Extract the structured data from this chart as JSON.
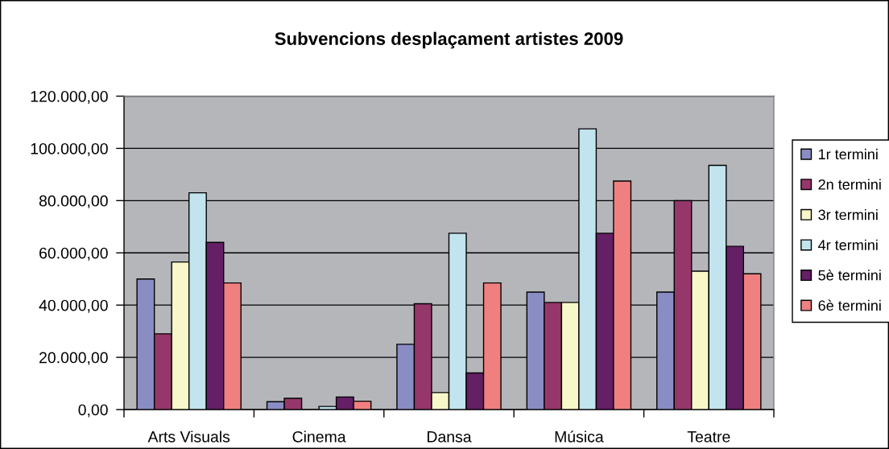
{
  "chart_data": {
    "type": "bar",
    "title": "Subvencions desplaçament artistes 2009",
    "categories": [
      "Arts Visuals",
      "Cinema",
      "Dansa",
      "Música",
      "Teatre"
    ],
    "series": [
      {
        "name": "1r termini",
        "color": "#8a8dc4",
        "values": [
          50000,
          3000,
          25000,
          45000,
          45000
        ]
      },
      {
        "name": "2n termini",
        "color": "#96376b",
        "values": [
          29000,
          4300,
          40500,
          41000,
          80000
        ]
      },
      {
        "name": "3r termini",
        "color": "#f8f7c9",
        "values": [
          56500,
          null,
          6500,
          41000,
          53000
        ]
      },
      {
        "name": "4r termini",
        "color": "#c1e4ee",
        "values": [
          83000,
          1200,
          67500,
          107500,
          93500
        ]
      },
      {
        "name": "5è termini",
        "color": "#651f65",
        "values": [
          64000,
          4800,
          14000,
          67500,
          62500
        ]
      },
      {
        "name": "6è termini",
        "color": "#f08080",
        "values": [
          48500,
          3200,
          48500,
          87500,
          52000
        ]
      }
    ],
    "ylim": [
      0,
      120000
    ],
    "yticks": [
      {
        "value": 0,
        "label": "0,00"
      },
      {
        "value": 20000,
        "label": "20.000,00"
      },
      {
        "value": 40000,
        "label": "40.000,00"
      },
      {
        "value": 60000,
        "label": "60.000,00"
      },
      {
        "value": 80000,
        "label": "80.000,00"
      },
      {
        "value": 100000,
        "label": "100.000,00"
      },
      {
        "value": 120000,
        "label": "120.000,00"
      }
    ],
    "grid": "y",
    "legend": "right"
  }
}
